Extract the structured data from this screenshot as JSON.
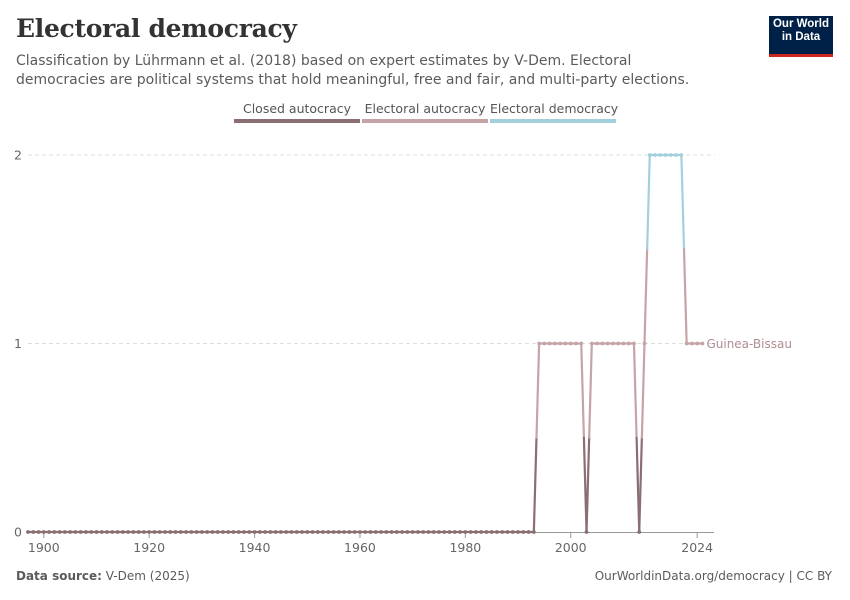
{
  "header": {
    "title": "Electoral democracy",
    "subtitle": "Classification by Lührmann et al. (2018) based on expert estimates by V-Dem. Electoral democracies are political systems that hold meaningful, free and fair, and multi-party elections."
  },
  "logo": {
    "line1": "Our World",
    "line2": "in Data"
  },
  "legend": [
    {
      "label": "Closed autocracy",
      "color": "#8a6e71"
    },
    {
      "label": "Electoral autocracy",
      "color": "#c5a4a7"
    },
    {
      "label": "Electoral democracy",
      "color": "#a2d0dc"
    }
  ],
  "footer": {
    "source_label": "Data source:",
    "source_value": "V-Dem (2025)",
    "right": "OurWorldinData.org/democracy | CC BY"
  },
  "chart_data": {
    "type": "line",
    "title": "Electoral democracy",
    "xlabel": "",
    "ylabel": "",
    "xlim": [
      1897,
      2027
    ],
    "ylim": [
      0,
      2
    ],
    "yticks": [
      0,
      1,
      2
    ],
    "xticks": [
      1900,
      1920,
      1940,
      1960,
      1980,
      2000,
      2024
    ],
    "grid": "horizontal dashed",
    "legend_position": "top",
    "series": [
      {
        "name": "Guinea-Bissau",
        "end_label": "Guinea-Bissau",
        "start_year": 1897,
        "end_year": 2025,
        "segments": [
          {
            "from": 1897,
            "to": 1993,
            "value": 0
          },
          {
            "from": 1994,
            "to": 2002,
            "value": 1
          },
          {
            "from": 2003,
            "to": 2003,
            "value": 0
          },
          {
            "from": 2004,
            "to": 2012,
            "value": 1
          },
          {
            "from": 2013,
            "to": 2013,
            "value": 0
          },
          {
            "from": 2014,
            "to": 2014,
            "value": 1
          },
          {
            "from": 2015,
            "to": 2021,
            "value": 2
          },
          {
            "from": 2022,
            "to": 2025,
            "value": 1
          }
        ]
      }
    ],
    "category_colors": {
      "0": "#8a6e71",
      "1": "#c5a4a7",
      "2": "#a2d0dc"
    }
  }
}
